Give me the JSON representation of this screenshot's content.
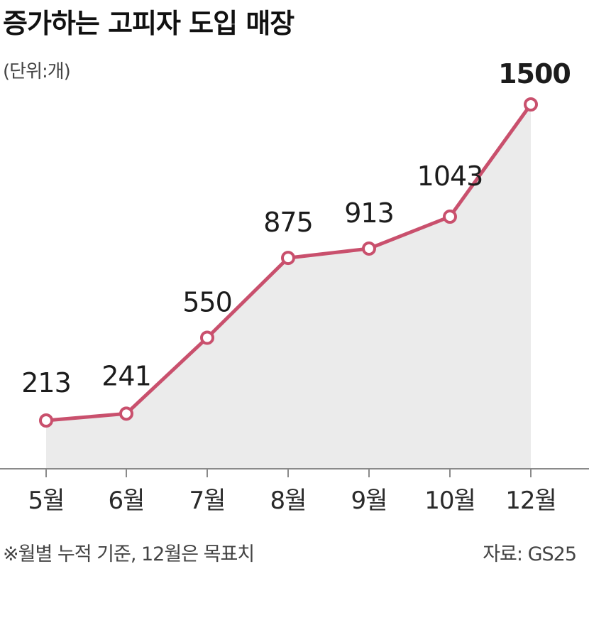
{
  "title": "증가하는 고피자 도입 매장",
  "unit": "(단위:개)",
  "footnote": "※월별 누적 기준, 12월은 목표치",
  "source": "자료: GS25",
  "colors": {
    "line": "#c9506d",
    "fill": "#ebebeb",
    "axis": "#8a8a8a"
  },
  "chart_data": {
    "type": "line",
    "categories": [
      "5월",
      "6월",
      "7월",
      "8월",
      "9월",
      "10월",
      "12월"
    ],
    "values": [
      213,
      241,
      550,
      875,
      913,
      1043,
      1500
    ],
    "value_labels": [
      "213",
      "241",
      "550",
      "875",
      "913",
      "1043",
      "1500"
    ],
    "title": "증가하는 고피자 도입 매장",
    "xlabel": "",
    "ylabel": "",
    "unit": "(단위:개)",
    "ylim": [
      0,
      1500
    ],
    "grid": false,
    "area_fill": true,
    "markers": "hollow-circle"
  }
}
